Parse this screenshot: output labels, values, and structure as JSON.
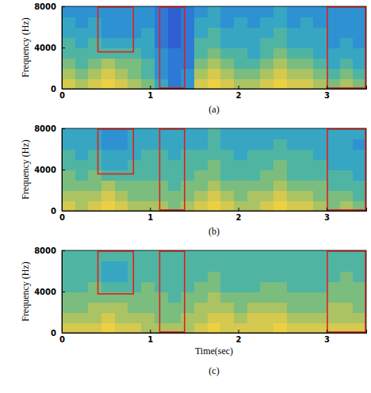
{
  "chart_data": [
    {
      "type": "heatmap",
      "title": "(a)",
      "y_label": "Frequency (Hz)",
      "xlim": [
        0,
        3.45
      ],
      "xticks": [
        0,
        1,
        2,
        3
      ],
      "ylim": [
        0,
        8000
      ],
      "yticks": [
        0,
        4000,
        8000
      ],
      "x_edges": [
        0,
        0.15,
        0.3,
        0.45,
        0.6,
        0.75,
        0.9,
        1.05,
        1.2,
        1.35,
        1.5,
        1.65,
        1.8,
        1.95,
        2.1,
        2.25,
        2.4,
        2.55,
        2.7,
        2.85,
        3.0,
        3.15,
        3.3,
        3.45
      ],
      "y_edges": [
        0,
        1000,
        2000,
        3000,
        4000,
        5000,
        6000,
        7000,
        8000
      ],
      "zlim": [
        0,
        9
      ],
      "cells": [
        [
          7,
          6,
          7,
          8,
          7,
          6,
          5,
          3,
          1,
          2,
          7,
          8,
          7,
          6,
          6,
          7,
          8,
          7,
          7,
          6,
          5,
          6,
          5
        ],
        [
          6,
          5,
          6,
          7,
          6,
          5,
          4,
          2,
          1,
          2,
          6,
          7,
          6,
          5,
          5,
          6,
          7,
          6,
          6,
          5,
          4,
          5,
          4
        ],
        [
          5,
          4,
          5,
          6,
          5,
          5,
          4,
          2,
          1,
          1,
          5,
          6,
          5,
          4,
          4,
          5,
          6,
          5,
          5,
          4,
          3,
          4,
          3
        ],
        [
          4,
          4,
          4,
          4,
          4,
          4,
          3,
          2,
          1,
          1,
          4,
          5,
          4,
          4,
          3,
          4,
          5,
          4,
          4,
          3,
          3,
          3,
          3
        ],
        [
          4,
          3,
          4,
          3,
          3,
          3,
          3,
          1,
          0,
          1,
          4,
          4,
          3,
          3,
          3,
          4,
          4,
          3,
          3,
          3,
          2,
          3,
          2
        ],
        [
          3,
          3,
          3,
          2,
          2,
          2,
          3,
          1,
          0,
          1,
          3,
          4,
          3,
          3,
          3,
          3,
          4,
          3,
          3,
          3,
          2,
          2,
          2
        ],
        [
          3,
          2,
          3,
          2,
          2,
          2,
          2,
          1,
          0,
          1,
          3,
          3,
          2,
          3,
          2,
          3,
          3,
          2,
          3,
          2,
          2,
          2,
          2
        ],
        [
          2,
          2,
          2,
          2,
          2,
          2,
          2,
          1,
          0,
          1,
          2,
          3,
          2,
          2,
          2,
          2,
          3,
          2,
          2,
          2,
          2,
          2,
          2
        ]
      ],
      "boxes": [
        {
          "x": [
            0.4,
            0.82
          ],
          "y": [
            3500,
            8000
          ]
        },
        {
          "x": [
            1.1,
            1.4
          ],
          "y": [
            0,
            8000
          ]
        },
        {
          "x": [
            3.0,
            3.45
          ],
          "y": [
            0,
            8000
          ]
        }
      ]
    },
    {
      "type": "heatmap",
      "title": "(b)",
      "y_label": "Frequency (Hz)",
      "xlim": [
        0,
        3.45
      ],
      "xticks": [
        0,
        1,
        2,
        3
      ],
      "ylim": [
        0,
        8000
      ],
      "yticks": [
        0,
        4000,
        8000
      ],
      "x_edges": [
        0,
        0.15,
        0.3,
        0.45,
        0.6,
        0.75,
        0.9,
        1.05,
        1.2,
        1.35,
        1.5,
        1.65,
        1.8,
        1.95,
        2.1,
        2.25,
        2.4,
        2.55,
        2.7,
        2.85,
        3.0,
        3.15,
        3.3,
        3.45
      ],
      "y_edges": [
        0,
        1000,
        2000,
        3000,
        4000,
        5000,
        6000,
        7000,
        8000
      ],
      "zlim": [
        0,
        9
      ],
      "cells": [
        [
          7,
          6,
          7,
          8,
          7,
          6,
          6,
          6,
          5,
          6,
          7,
          8,
          7,
          6,
          6,
          7,
          8,
          7,
          7,
          6,
          5,
          6,
          5
        ],
        [
          6,
          6,
          6,
          7,
          6,
          5,
          5,
          5,
          5,
          5,
          6,
          7,
          6,
          5,
          6,
          6,
          7,
          6,
          6,
          5,
          5,
          5,
          4
        ],
        [
          5,
          5,
          5,
          6,
          5,
          5,
          5,
          5,
          4,
          5,
          5,
          6,
          5,
          5,
          5,
          5,
          6,
          5,
          5,
          5,
          4,
          4,
          4
        ],
        [
          5,
          4,
          5,
          4,
          4,
          4,
          4,
          4,
          4,
          4,
          5,
          5,
          4,
          4,
          4,
          5,
          5,
          4,
          4,
          4,
          4,
          4,
          3
        ],
        [
          4,
          4,
          4,
          3,
          3,
          4,
          4,
          4,
          4,
          4,
          4,
          5,
          4,
          4,
          4,
          4,
          5,
          4,
          4,
          4,
          3,
          3,
          3
        ],
        [
          4,
          3,
          4,
          3,
          3,
          3,
          4,
          4,
          3,
          4,
          4,
          4,
          4,
          3,
          4,
          4,
          4,
          4,
          4,
          3,
          3,
          3,
          3
        ],
        [
          3,
          3,
          3,
          2,
          2,
          3,
          3,
          3,
          3,
          3,
          3,
          4,
          3,
          3,
          3,
          3,
          4,
          3,
          3,
          3,
          3,
          3,
          2
        ],
        [
          3,
          3,
          3,
          2,
          2,
          3,
          3,
          3,
          3,
          3,
          3,
          4,
          3,
          3,
          3,
          3,
          3,
          3,
          3,
          3,
          3,
          3,
          3
        ]
      ],
      "boxes": [
        {
          "x": [
            0.4,
            0.82
          ],
          "y": [
            3500,
            8000
          ]
        },
        {
          "x": [
            1.1,
            1.4
          ],
          "y": [
            0,
            8000
          ]
        },
        {
          "x": [
            3.0,
            3.45
          ],
          "y": [
            0,
            8000
          ]
        }
      ]
    },
    {
      "type": "heatmap",
      "title": "(c)",
      "y_label": "Frequency (Hz)",
      "x_label": "Time(sec)",
      "xlim": [
        0,
        3.45
      ],
      "xticks": [
        0,
        1,
        2,
        3
      ],
      "ylim": [
        0,
        8000
      ],
      "yticks": [
        0,
        4000,
        8000
      ],
      "x_edges": [
        0,
        0.15,
        0.3,
        0.45,
        0.6,
        0.75,
        0.9,
        1.05,
        1.2,
        1.35,
        1.5,
        1.65,
        1.8,
        1.95,
        2.1,
        2.25,
        2.4,
        2.55,
        2.7,
        2.85,
        3.0,
        3.15,
        3.3,
        3.45
      ],
      "y_edges": [
        0,
        1000,
        2000,
        3000,
        4000,
        5000,
        6000,
        7000,
        8000
      ],
      "zlim": [
        0,
        9
      ],
      "cells": [
        [
          7,
          7,
          7,
          8,
          7,
          7,
          6,
          6,
          6,
          6,
          7,
          8,
          7,
          7,
          7,
          7,
          8,
          7,
          7,
          7,
          7,
          7,
          7
        ],
        [
          6,
          6,
          6,
          7,
          6,
          6,
          6,
          5,
          5,
          6,
          6,
          7,
          7,
          6,
          7,
          7,
          7,
          6,
          6,
          6,
          6,
          6,
          6
        ],
        [
          5,
          5,
          6,
          6,
          6,
          5,
          5,
          5,
          5,
          5,
          6,
          6,
          6,
          5,
          6,
          6,
          6,
          5,
          5,
          5,
          6,
          6,
          5
        ],
        [
          5,
          5,
          5,
          5,
          5,
          5,
          5,
          5,
          4,
          5,
          5,
          6,
          5,
          5,
          5,
          5,
          5,
          5,
          5,
          5,
          5,
          5,
          5
        ],
        [
          4,
          4,
          5,
          4,
          4,
          4,
          5,
          4,
          4,
          4,
          5,
          5,
          4,
          4,
          4,
          5,
          5,
          4,
          4,
          4,
          5,
          5,
          5
        ],
        [
          4,
          4,
          4,
          3,
          3,
          4,
          4,
          4,
          4,
          4,
          4,
          5,
          4,
          4,
          4,
          4,
          4,
          4,
          4,
          4,
          4,
          5,
          4
        ],
        [
          4,
          4,
          4,
          3,
          3,
          4,
          4,
          4,
          4,
          4,
          4,
          4,
          4,
          4,
          4,
          4,
          4,
          4,
          4,
          4,
          4,
          4,
          4
        ],
        [
          4,
          4,
          4,
          4,
          4,
          4,
          4,
          4,
          4,
          4,
          4,
          4,
          4,
          4,
          4,
          4,
          4,
          4,
          4,
          4,
          4,
          4,
          4
        ]
      ],
      "boxes": [
        {
          "x": [
            0.4,
            0.82
          ],
          "y": [
            3700,
            8000
          ]
        },
        {
          "x": [
            1.1,
            1.4
          ],
          "y": [
            0,
            8000
          ]
        },
        {
          "x": [
            3.0,
            3.45
          ],
          "y": [
            0,
            8000
          ]
        }
      ]
    }
  ]
}
